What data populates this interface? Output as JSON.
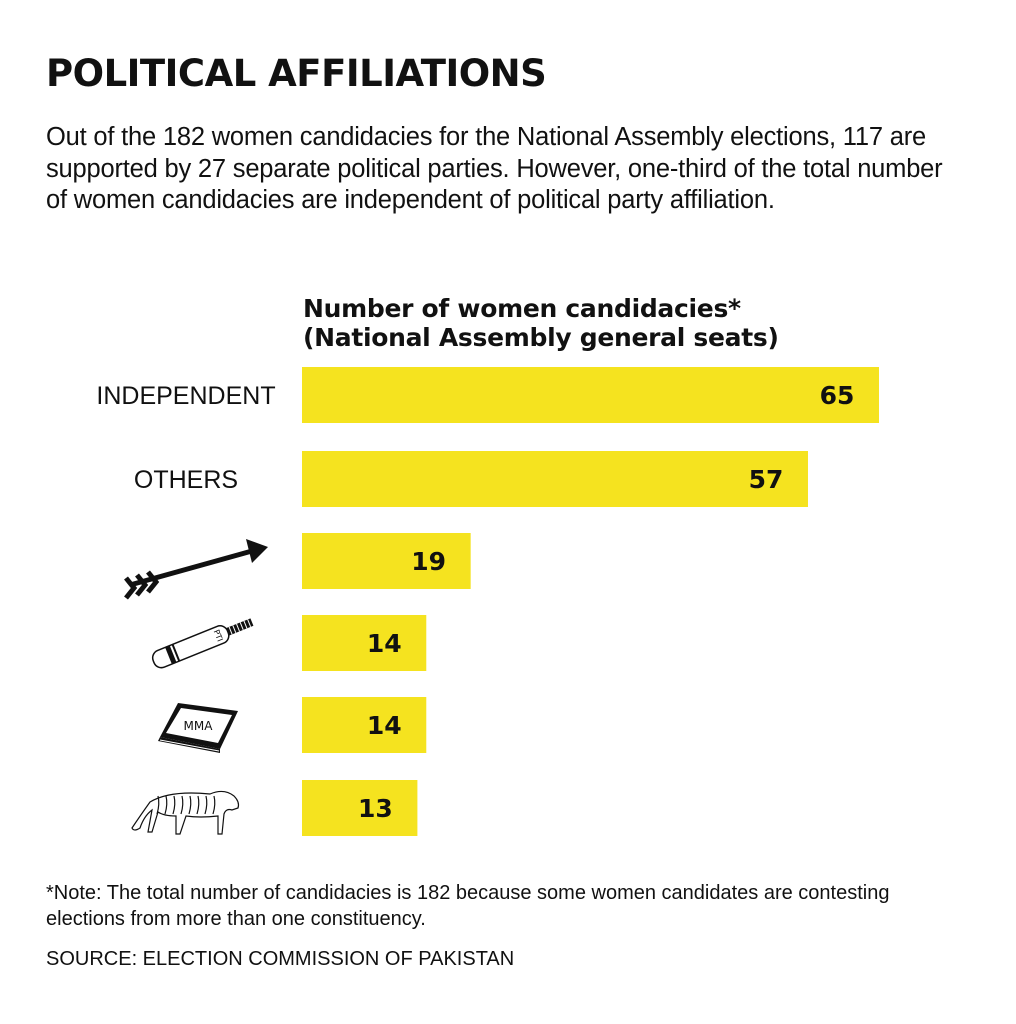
{
  "title": "POLITICAL AFFILIATIONS",
  "intro": "Out of the 182 women candidacies for the National Assembly elections, 117 are supported by 27 separate political parties. However, one-third of the total number of women candidacies are independent of political party affiliation.",
  "note": "*Note: The total number of candidacies is 182 because some women candidates are contesting elections from more than one constituency.",
  "source": "SOURCE: ELECTION COMMISSION OF PAKISTAN",
  "colors": {
    "bar": "#f5e31f",
    "text": "#111111"
  },
  "chart_data": {
    "type": "bar",
    "orientation": "horizontal",
    "title": "Number of women candidacies*",
    "subtitle": "(National Assembly general seats)",
    "xlabel": "",
    "ylabel": "",
    "xlim": [
      0,
      65
    ],
    "grid": false,
    "categories": [
      {
        "label": "INDEPENDENT",
        "icon": null
      },
      {
        "label": "OTHERS",
        "icon": null
      },
      {
        "label": null,
        "icon": "arrow-icon"
      },
      {
        "label": null,
        "icon": "cricket-bat-icon",
        "icon_text": "PTI"
      },
      {
        "label": null,
        "icon": "book-icon",
        "icon_text": "MMA"
      },
      {
        "label": null,
        "icon": "tiger-icon"
      }
    ],
    "values": [
      65,
      57,
      19,
      14,
      14,
      13
    ]
  }
}
